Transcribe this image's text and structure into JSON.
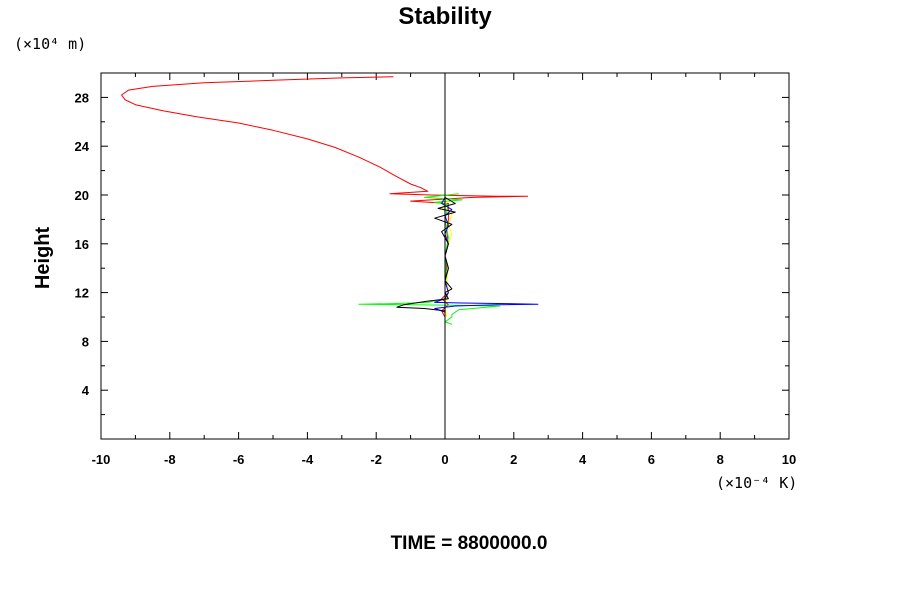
{
  "chart_data": {
    "type": "line",
    "title": "Stability",
    "ylabel": "Height",
    "y_unit": "(×10⁴ m)",
    "x_unit": "(×10⁻⁴ K)",
    "footer": "TIME = 8800000.0",
    "xlim": [
      -10,
      10
    ],
    "ylim": [
      0,
      30
    ],
    "x_ticks": [
      -10,
      -8,
      -6,
      -4,
      -2,
      0,
      2,
      4,
      6,
      8,
      10
    ],
    "y_ticks": [
      4,
      8,
      12,
      16,
      20,
      24,
      28
    ],
    "grid": false,
    "legend": "none",
    "series": [
      {
        "color": "#ff0000",
        "points": [
          [
            -1.5,
            29.7
          ],
          [
            -3.0,
            29.6
          ],
          [
            -5.0,
            29.4
          ],
          [
            -7.0,
            29.2
          ],
          [
            -8.5,
            28.9
          ],
          [
            -9.2,
            28.6
          ],
          [
            -9.4,
            28.2
          ],
          [
            -9.3,
            27.8
          ],
          [
            -9.0,
            27.4
          ],
          [
            -8.2,
            26.9
          ],
          [
            -7.2,
            26.4
          ],
          [
            -6.0,
            25.9
          ],
          [
            -5.0,
            25.3
          ],
          [
            -4.0,
            24.6
          ],
          [
            -3.2,
            23.9
          ],
          [
            -2.5,
            23.1
          ],
          [
            -1.9,
            22.3
          ],
          [
            -1.4,
            21.5
          ],
          [
            -1.0,
            20.9
          ],
          [
            -0.7,
            20.6
          ],
          [
            -0.5,
            20.3
          ],
          [
            -1.6,
            20.1
          ],
          [
            -0.4,
            20.0
          ],
          [
            1.5,
            19.9
          ],
          [
            2.4,
            19.9
          ],
          [
            0.8,
            19.8
          ],
          [
            -0.4,
            19.6
          ],
          [
            -1.0,
            19.5
          ],
          [
            0.1,
            19.3
          ],
          [
            0.1,
            18.0
          ],
          [
            0.05,
            17.0
          ],
          [
            0.1,
            16.0
          ],
          [
            0.0,
            15.0
          ],
          [
            0.05,
            14.0
          ],
          [
            0.0,
            13.0
          ],
          [
            0.1,
            12.0
          ],
          [
            -0.1,
            11.5
          ],
          [
            0.1,
            11.0
          ],
          [
            -0.1,
            10.5
          ],
          [
            0.0,
            10.0
          ],
          [
            0.0,
            9.0
          ],
          [
            0.0,
            8.5
          ]
        ]
      },
      {
        "color": "#00ff00",
        "points": [
          [
            0.4,
            20.1
          ],
          [
            -0.6,
            19.8
          ],
          [
            0.5,
            19.6
          ],
          [
            -0.3,
            19.4
          ],
          [
            0.1,
            19.2
          ],
          [
            0.0,
            18.0
          ],
          [
            0.1,
            16.5
          ],
          [
            0.0,
            15.0
          ],
          [
            0.05,
            13.0
          ],
          [
            0.1,
            12.0
          ],
          [
            0.0,
            11.5
          ],
          [
            -0.5,
            11.2
          ],
          [
            -1.5,
            11.1
          ],
          [
            -2.5,
            11.05
          ],
          [
            -1.0,
            11.0
          ],
          [
            0.5,
            10.95
          ],
          [
            1.6,
            10.9
          ],
          [
            1.2,
            10.8
          ],
          [
            0.4,
            10.6
          ],
          [
            0.2,
            10.2
          ],
          [
            0.2,
            10.0
          ],
          [
            0.0,
            9.6
          ],
          [
            0.2,
            9.4
          ]
        ]
      },
      {
        "color": "#ffff00",
        "points": [
          [
            0.1,
            19.5
          ],
          [
            -0.1,
            19.0
          ],
          [
            0.2,
            18.5
          ],
          [
            0.1,
            17.5
          ],
          [
            0.2,
            16.8
          ],
          [
            0.1,
            16.0
          ],
          [
            0.0,
            15.0
          ],
          [
            0.1,
            14.0
          ],
          [
            0.05,
            13.0
          ],
          [
            0.1,
            12.0
          ],
          [
            0.0,
            11.0
          ],
          [
            0.05,
            10.0
          ]
        ]
      },
      {
        "color": "#0000ff",
        "points": [
          [
            0.0,
            19.8
          ],
          [
            -0.1,
            19.3
          ],
          [
            0.2,
            18.8
          ],
          [
            0.0,
            18.3
          ],
          [
            0.1,
            17.5
          ],
          [
            0.0,
            16.8
          ],
          [
            0.1,
            16.0
          ],
          [
            0.0,
            15.0
          ],
          [
            0.1,
            14.0
          ],
          [
            0.0,
            13.0
          ],
          [
            0.1,
            12.0
          ],
          [
            0.0,
            11.5
          ],
          [
            -0.3,
            11.2
          ],
          [
            0.5,
            11.15
          ],
          [
            1.8,
            11.1
          ],
          [
            2.7,
            11.05
          ],
          [
            1.5,
            11.0
          ],
          [
            0.3,
            10.9
          ],
          [
            -0.3,
            10.7
          ],
          [
            0.0,
            10.4
          ],
          [
            0.0,
            10.0
          ]
        ]
      },
      {
        "color": "#000000",
        "points": [
          [
            0.0,
            19.8
          ],
          [
            0.3,
            19.3
          ],
          [
            -0.2,
            18.9
          ],
          [
            0.3,
            18.6
          ],
          [
            -0.3,
            18.1
          ],
          [
            0.2,
            17.6
          ],
          [
            -0.1,
            17.0
          ],
          [
            0.0,
            16.5
          ],
          [
            0.1,
            16.0
          ],
          [
            0.0,
            15.0
          ],
          [
            0.1,
            14.0
          ],
          [
            0.0,
            13.0
          ],
          [
            0.2,
            12.3
          ],
          [
            0.0,
            12.0
          ],
          [
            0.1,
            11.5
          ],
          [
            -0.5,
            11.3
          ],
          [
            -1.2,
            11.0
          ],
          [
            -1.4,
            10.8
          ],
          [
            -0.6,
            10.7
          ],
          [
            0.0,
            10.5
          ],
          [
            0.0,
            10.0
          ]
        ]
      }
    ]
  }
}
